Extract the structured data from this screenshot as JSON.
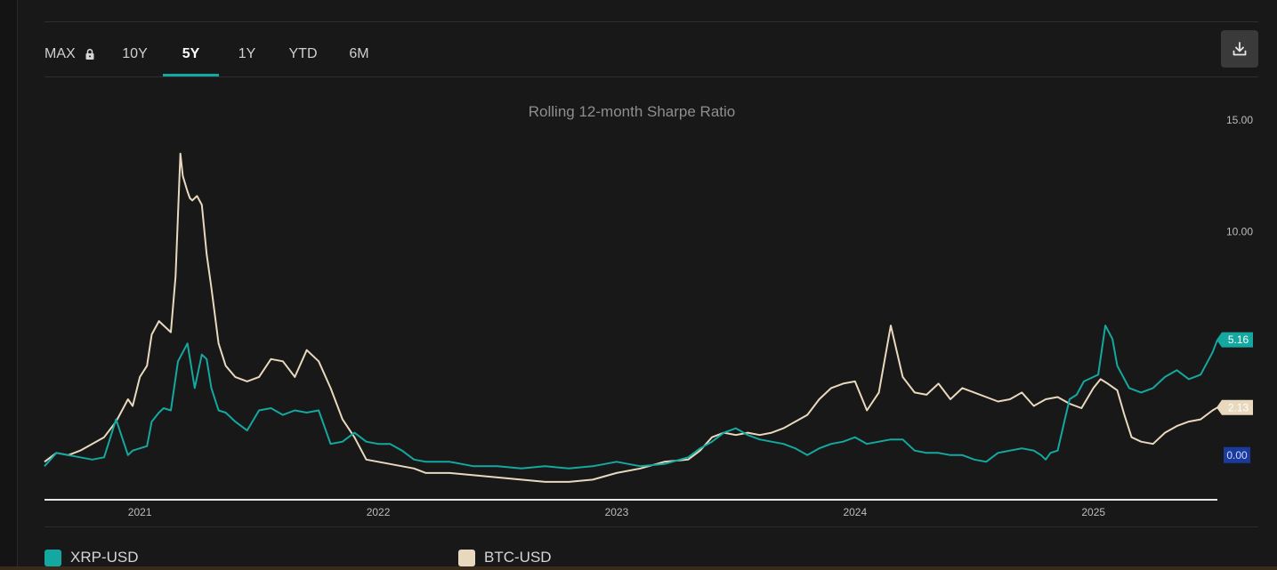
{
  "toolbar": {
    "tabs": [
      {
        "label": "MAX",
        "locked": true
      },
      {
        "label": "10Y"
      },
      {
        "label": "5Y",
        "active": true
      },
      {
        "label": "1Y"
      },
      {
        "label": "YTD"
      },
      {
        "label": "6M"
      }
    ],
    "download_icon": "download-icon"
  },
  "colors": {
    "xrp": "#14a8a0",
    "btc": "#e8d8bd",
    "zero_badge": "#1a3a9c",
    "accent": "#14a8a0"
  },
  "chart_data": {
    "type": "line",
    "title": "Rolling 12-month Sharpe Ratio",
    "x_ticks": [
      "2021",
      "2022",
      "2023",
      "2024",
      "2025"
    ],
    "y_ticks": [
      "15.00",
      "10.00"
    ],
    "ylim": [
      -2,
      15
    ],
    "x_range": [
      2020.6,
      2025.52
    ],
    "legend": "bottom-left",
    "badges": {
      "xrp": "5.16",
      "btc": "2.13",
      "zero": "0.00"
    },
    "series": [
      {
        "name": "XRP-USD",
        "key": "xrp",
        "x": [
          2020.6,
          2020.65,
          2020.7,
          2020.75,
          2020.8,
          2020.85,
          2020.9,
          2020.95,
          2020.97,
          2021.0,
          2021.03,
          2021.05,
          2021.08,
          2021.1,
          2021.13,
          2021.16,
          2021.2,
          2021.23,
          2021.26,
          2021.28,
          2021.3,
          2021.33,
          2021.36,
          2021.4,
          2021.45,
          2021.5,
          2021.55,
          2021.6,
          2021.65,
          2021.7,
          2021.75,
          2021.8,
          2021.85,
          2021.9,
          2021.95,
          2022.0,
          2022.05,
          2022.1,
          2022.15,
          2022.2,
          2022.3,
          2022.4,
          2022.5,
          2022.6,
          2022.7,
          2022.8,
          2022.9,
          2023.0,
          2023.1,
          2023.2,
          2023.3,
          2023.35,
          2023.4,
          2023.45,
          2023.5,
          2023.55,
          2023.6,
          2023.65,
          2023.7,
          2023.75,
          2023.8,
          2023.85,
          2023.9,
          2023.95,
          2024.0,
          2024.05,
          2024.1,
          2024.15,
          2024.2,
          2024.25,
          2024.3,
          2024.35,
          2024.4,
          2024.45,
          2024.5,
          2024.55,
          2024.6,
          2024.65,
          2024.7,
          2024.75,
          2024.78,
          2024.8,
          2024.82,
          2024.85,
          2024.88,
          2024.9,
          2024.93,
          2024.96,
          2025.0,
          2025.02,
          2025.05,
          2025.08,
          2025.1,
          2025.15,
          2025.2,
          2025.25,
          2025.3,
          2025.35,
          2025.4,
          2025.45,
          2025.5,
          2025.52
        ],
        "y": [
          -0.5,
          0.1,
          0.0,
          -0.1,
          -0.2,
          -0.1,
          1.6,
          0.0,
          0.2,
          0.3,
          0.4,
          1.5,
          1.9,
          2.1,
          2.0,
          4.2,
          5.0,
          3.0,
          4.5,
          4.3,
          3.0,
          2.0,
          1.9,
          1.5,
          1.1,
          2.0,
          2.1,
          1.8,
          2.0,
          1.9,
          2.0,
          0.5,
          0.6,
          1.0,
          0.6,
          0.5,
          0.5,
          0.2,
          -0.2,
          -0.3,
          -0.3,
          -0.5,
          -0.5,
          -0.6,
          -0.5,
          -0.6,
          -0.5,
          -0.3,
          -0.5,
          -0.4,
          -0.1,
          0.3,
          0.6,
          1.0,
          1.2,
          0.9,
          0.7,
          0.6,
          0.5,
          0.3,
          0.0,
          0.3,
          0.5,
          0.6,
          0.8,
          0.5,
          0.6,
          0.7,
          0.7,
          0.2,
          0.1,
          0.1,
          0.0,
          0.0,
          -0.2,
          -0.3,
          0.1,
          0.2,
          0.3,
          0.2,
          0.0,
          -0.2,
          0.1,
          0.2,
          1.6,
          2.5,
          2.7,
          3.3,
          3.5,
          3.6,
          5.8,
          5.2,
          4.0,
          3.0,
          2.8,
          3.0,
          3.5,
          3.8,
          3.4,
          3.6,
          4.6,
          5.16
        ]
      },
      {
        "name": "BTC-USD",
        "key": "btc",
        "x": [
          2020.6,
          2020.65,
          2020.7,
          2020.75,
          2020.8,
          2020.85,
          2020.9,
          2020.95,
          2020.97,
          2021.0,
          2021.03,
          2021.05,
          2021.08,
          2021.1,
          2021.13,
          2021.15,
          2021.17,
          2021.18,
          2021.2,
          2021.21,
          2021.22,
          2021.24,
          2021.26,
          2021.28,
          2021.3,
          2021.33,
          2021.36,
          2021.4,
          2021.45,
          2021.5,
          2021.55,
          2021.6,
          2021.65,
          2021.7,
          2021.75,
          2021.8,
          2021.85,
          2021.9,
          2021.95,
          2022.0,
          2022.05,
          2022.1,
          2022.15,
          2022.2,
          2022.3,
          2022.4,
          2022.5,
          2022.6,
          2022.7,
          2022.8,
          2022.9,
          2023.0,
          2023.1,
          2023.2,
          2023.3,
          2023.35,
          2023.4,
          2023.45,
          2023.5,
          2023.55,
          2023.6,
          2023.65,
          2023.7,
          2023.75,
          2023.8,
          2023.85,
          2023.9,
          2023.95,
          2024.0,
          2024.05,
          2024.1,
          2024.15,
          2024.2,
          2024.25,
          2024.3,
          2024.35,
          2024.4,
          2024.45,
          2024.5,
          2024.55,
          2024.6,
          2024.65,
          2024.7,
          2024.75,
          2024.8,
          2024.85,
          2024.9,
          2024.95,
          2025.0,
          2025.03,
          2025.06,
          2025.1,
          2025.13,
          2025.16,
          2025.2,
          2025.25,
          2025.3,
          2025.35,
          2025.4,
          2025.45,
          2025.5,
          2025.52
        ],
        "y": [
          -0.3,
          0.1,
          0.0,
          0.2,
          0.5,
          0.8,
          1.5,
          2.5,
          2.2,
          3.5,
          4.0,
          5.4,
          6.0,
          5.8,
          5.5,
          8.0,
          13.5,
          12.5,
          11.8,
          11.5,
          11.4,
          11.6,
          11.2,
          9.0,
          7.5,
          5.0,
          4.0,
          3.5,
          3.3,
          3.5,
          4.3,
          4.2,
          3.5,
          4.7,
          4.2,
          3.0,
          1.6,
          0.8,
          -0.2,
          -0.3,
          -0.4,
          -0.5,
          -0.6,
          -0.8,
          -0.8,
          -0.9,
          -1.0,
          -1.1,
          -1.2,
          -1.2,
          -1.1,
          -0.8,
          -0.6,
          -0.3,
          -0.2,
          0.2,
          0.8,
          1.0,
          0.9,
          1.0,
          0.9,
          1.0,
          1.2,
          1.5,
          1.8,
          2.5,
          3.0,
          3.2,
          3.3,
          2.0,
          2.8,
          5.8,
          3.5,
          2.8,
          2.7,
          3.2,
          2.5,
          3.0,
          2.8,
          2.6,
          2.4,
          2.5,
          2.8,
          2.2,
          2.5,
          2.6,
          2.3,
          2.1,
          3.0,
          3.4,
          3.2,
          2.9,
          1.8,
          0.8,
          0.6,
          0.5,
          1.0,
          1.3,
          1.5,
          1.6,
          2.0,
          2.13
        ]
      }
    ]
  },
  "legend": {
    "xrp_label": "XRP-USD",
    "btc_label": "BTC-USD"
  }
}
